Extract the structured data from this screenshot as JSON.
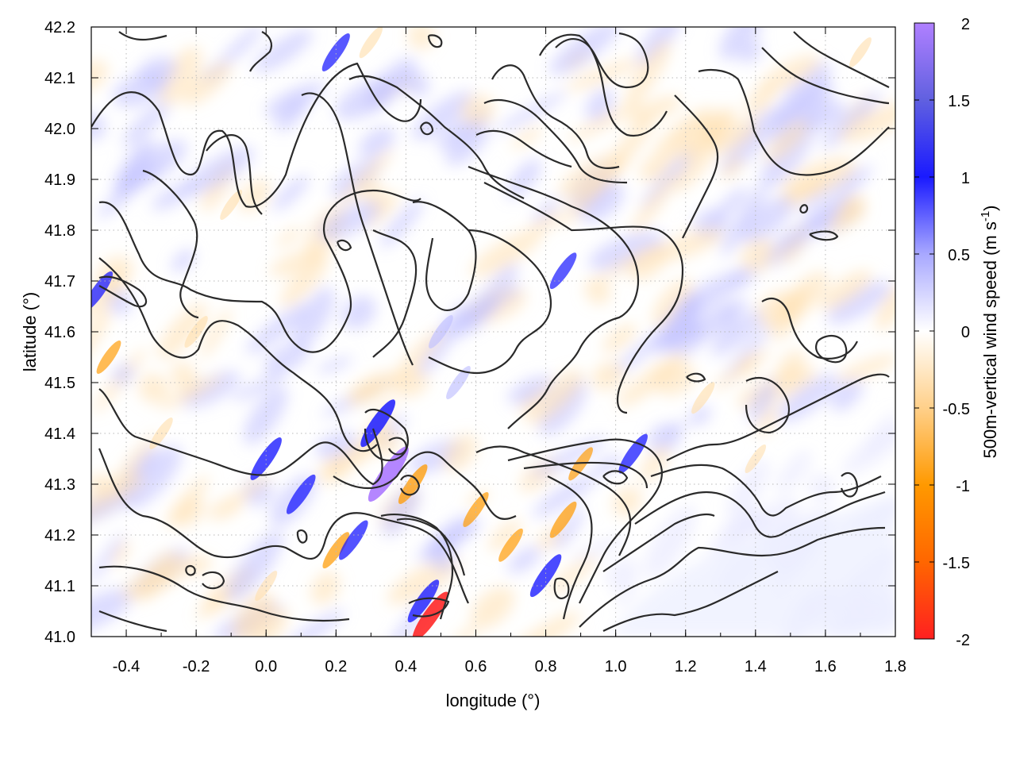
{
  "chart_data": {
    "type": "heatmap",
    "title": "",
    "xlabel": "longitude (°)",
    "ylabel": "latitude (°)",
    "xlim": [
      -0.5,
      1.8
    ],
    "ylim": [
      41.0,
      42.2
    ],
    "xticks": [
      -0.4,
      -0.2,
      0.0,
      0.2,
      0.4,
      0.6,
      0.8,
      1.0,
      1.2,
      1.4,
      1.6,
      1.8
    ],
    "xtick_labels": [
      "-0.4",
      "-0.2",
      "0.0",
      "0.2",
      "0.4",
      "0.6",
      "0.8",
      "1.0",
      "1.2",
      "1.4",
      "1.6",
      "1.8"
    ],
    "yticks": [
      41.0,
      41.1,
      41.2,
      41.3,
      41.4,
      41.5,
      41.6,
      41.7,
      41.8,
      41.9,
      42.0,
      42.1,
      42.2
    ],
    "ytick_labels": [
      "41.0",
      "41.1",
      "41.2",
      "41.3",
      "41.4",
      "41.5",
      "41.6",
      "41.7",
      "41.8",
      "41.9",
      "42.0",
      "42.1",
      "42.2"
    ],
    "grid": true,
    "colorbar": {
      "label_main": "500m-vertical wind speed (m s",
      "label_sup": "-1",
      "label_close": ")",
      "range": [
        -2,
        2
      ],
      "ticks": [
        2,
        1.5,
        1,
        0.5,
        0,
        -0.5,
        -1,
        -1.5,
        -2
      ],
      "tick_labels": [
        "2",
        "1.5",
        "1",
        "0.5",
        "0",
        "-0.5",
        "-1",
        "-1.5",
        "-2"
      ],
      "colors": {
        "neg_extreme": "#ff2020",
        "neg_strong": "#ff9900",
        "neg_mild": "#ffe0b0",
        "zero": "#ffffff",
        "pos_mild": "#c0c0ff",
        "pos_strong": "#1a1aff",
        "pos_extreme": "#b080ff"
      }
    },
    "features": [
      {
        "lon": 0.0,
        "lat": 41.35,
        "value": 1.2
      },
      {
        "lon": 0.1,
        "lat": 41.28,
        "value": 1.0
      },
      {
        "lon": 0.35,
        "lat": 41.32,
        "value": 2.0
      },
      {
        "lon": 0.32,
        "lat": 41.42,
        "value": 1.5
      },
      {
        "lon": 0.42,
        "lat": 41.3,
        "value": -1.0
      },
      {
        "lon": 0.47,
        "lat": 41.04,
        "value": -1.6
      },
      {
        "lon": 0.45,
        "lat": 41.07,
        "value": 1.2
      },
      {
        "lon": 0.2,
        "lat": 41.17,
        "value": -0.8
      },
      {
        "lon": 0.25,
        "lat": 41.19,
        "value": 1.0
      },
      {
        "lon": 0.8,
        "lat": 41.12,
        "value": 1.2
      },
      {
        "lon": 0.85,
        "lat": 41.23,
        "value": -0.8
      },
      {
        "lon": 1.05,
        "lat": 41.36,
        "value": 1.0
      },
      {
        "lon": 0.9,
        "lat": 41.34,
        "value": -0.6
      },
      {
        "lon": 0.55,
        "lat": 41.5,
        "value": 0.6
      },
      {
        "lon": 0.5,
        "lat": 41.6,
        "value": 0.6
      },
      {
        "lon": 0.85,
        "lat": 41.72,
        "value": 0.8
      },
      {
        "lon": 0.2,
        "lat": 42.15,
        "value": 0.9
      },
      {
        "lon": 0.3,
        "lat": 42.17,
        "value": -0.5
      },
      {
        "lon": -0.48,
        "lat": 41.68,
        "value": 1.0
      },
      {
        "lon": -0.45,
        "lat": 41.55,
        "value": -0.6
      },
      {
        "lon": -0.3,
        "lat": 41.4,
        "value": -0.5
      },
      {
        "lon": -0.2,
        "lat": 41.6,
        "value": -0.5
      },
      {
        "lon": -0.1,
        "lat": 41.85,
        "value": -0.4
      },
      {
        "lon": 0.0,
        "lat": 41.1,
        "value": -0.4
      },
      {
        "lon": 1.25,
        "lat": 41.47,
        "value": -0.5
      },
      {
        "lon": 1.4,
        "lat": 41.35,
        "value": -0.3
      },
      {
        "lon": 1.7,
        "lat": 42.15,
        "value": -0.4
      },
      {
        "lon": 0.6,
        "lat": 41.25,
        "value": -0.7
      },
      {
        "lon": 0.7,
        "lat": 41.18,
        "value": -0.6
      }
    ]
  }
}
